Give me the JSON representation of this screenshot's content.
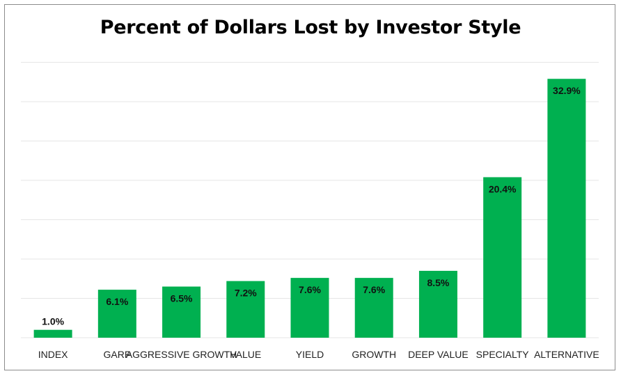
{
  "chart_data": {
    "type": "bar",
    "title": "Percent of Dollars Lost by Investor Style",
    "xlabel": "",
    "ylabel": "",
    "categories": [
      "INDEX",
      "GARP",
      "AGGRESSIVE GROWTH",
      "VALUE",
      "YIELD",
      "GROWTH",
      "DEEP VALUE",
      "SPECIALTY",
      "ALTERNATIVE"
    ],
    "values": [
      1.0,
      6.1,
      6.5,
      7.2,
      7.6,
      7.6,
      8.5,
      20.4,
      32.9
    ],
    "data_labels": [
      "1.0%",
      "6.1%",
      "6.5%",
      "7.2%",
      "7.6%",
      "7.6%",
      "8.5%",
      "20.4%",
      "32.9%"
    ],
    "ylim": [
      0,
      35
    ],
    "y_axis_labels_shown": false,
    "grid": true,
    "legend": "none",
    "colors": {
      "bar": "#00B050",
      "grid": "#e6e6e6",
      "border": "#8c8c8c"
    }
  }
}
